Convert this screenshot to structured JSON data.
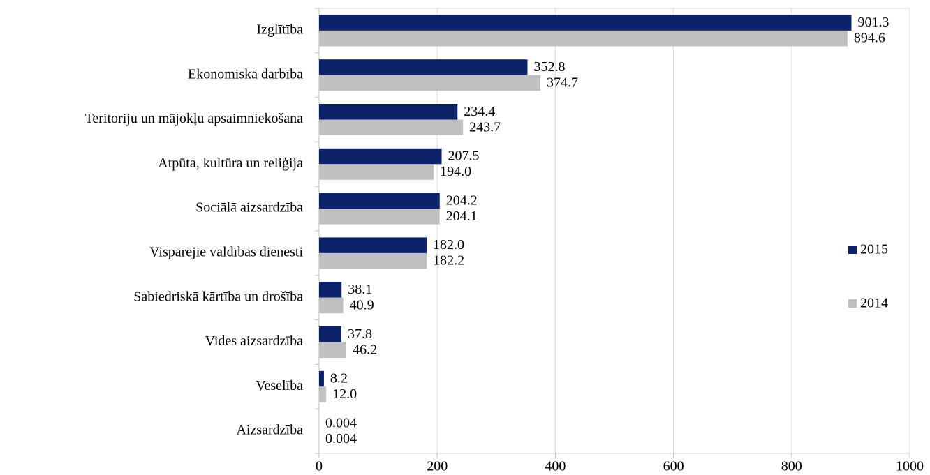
{
  "chart_data": {
    "type": "bar",
    "orientation": "horizontal",
    "categories": [
      "Izglītība",
      "Ekonomiskā darbība",
      "Teritoriju un mājokļu apsaimniekošana",
      "Atpūta, kultūra un reliģija",
      "Sociālā aizsardzība",
      "Vispārējie valdības dienesti",
      "Sabiedriskā kārtība un drošība",
      "Vides aizsardzība",
      "Veselība",
      "Aizsardzība"
    ],
    "series": [
      {
        "name": "2015",
        "color": "#0c2168",
        "values": [
          901.3,
          352.8,
          234.4,
          207.5,
          204.2,
          182.0,
          38.1,
          37.8,
          8.2,
          0.004
        ],
        "value_labels": [
          "901.3",
          "352.8",
          "234.4",
          "207.5",
          "204.2",
          "182.0",
          "38.1",
          "37.8",
          "8.2",
          "0.004"
        ]
      },
      {
        "name": "2014",
        "color": "#c0c0c2",
        "values": [
          894.6,
          374.7,
          243.7,
          194.0,
          204.1,
          182.2,
          40.9,
          46.2,
          12.0,
          0.004
        ],
        "value_labels": [
          "894.6",
          "374.7",
          "243.7",
          "194.0",
          "204.1",
          "182.2",
          "40.9",
          "46.2",
          "12.0",
          "0.004"
        ]
      }
    ],
    "xlim": [
      0,
      1000
    ],
    "xticks": [
      0,
      200,
      400,
      600,
      800,
      1000
    ],
    "grid": true,
    "legend": "right"
  }
}
